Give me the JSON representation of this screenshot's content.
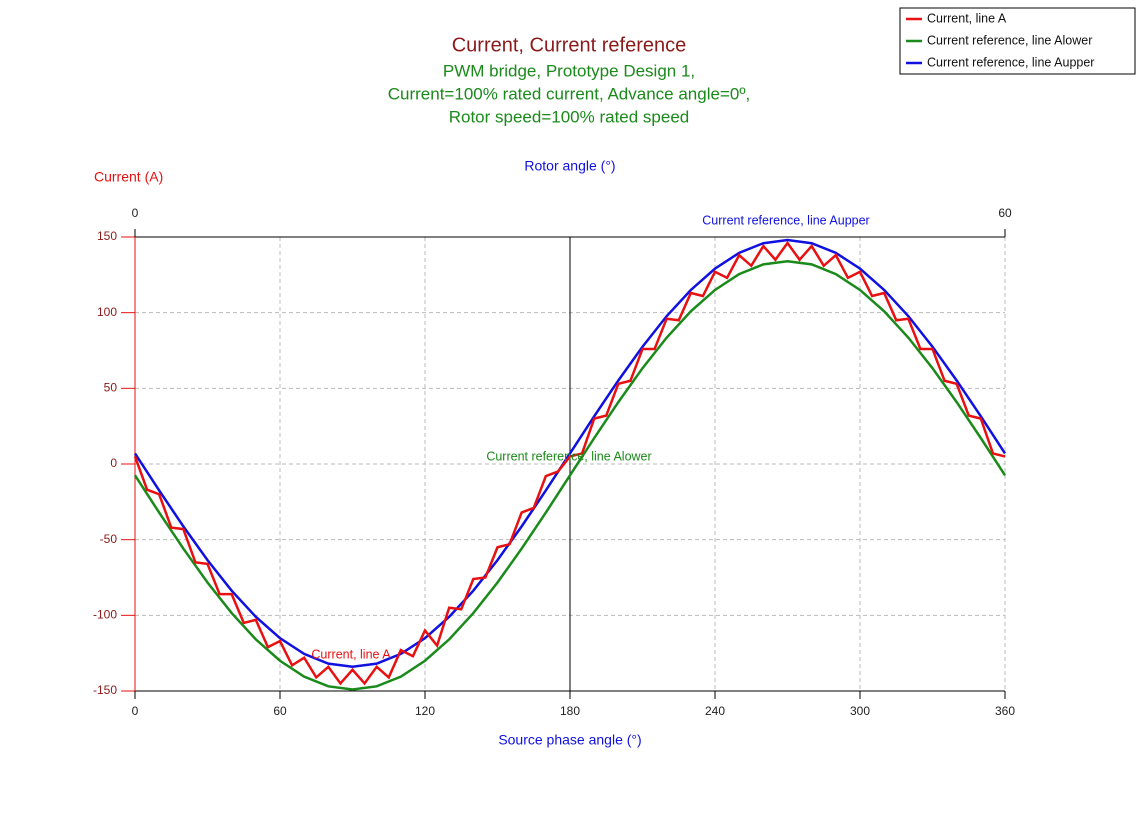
{
  "chart_data": {
    "type": "line",
    "title": "Current, Current reference",
    "subtitle": [
      "PWM bridge, Prototype Design 1,",
      "Current=100% rated current, Advance angle=0º,",
      "Rotor speed=100% rated speed"
    ],
    "x_label": "Source phase angle (°)",
    "y_label": "Current (A)",
    "x2_label": "Rotor angle (°)",
    "xlim": [
      0,
      360
    ],
    "xticks": [
      0,
      60,
      120,
      180,
      240,
      300,
      360
    ],
    "x2lim": [
      0,
      60
    ],
    "x2ticks": [
      0,
      60
    ],
    "ylim": [
      -150,
      150
    ],
    "yticks": [
      -150,
      -100,
      -50,
      0,
      50,
      100,
      150
    ],
    "grid": true,
    "legend": "top-right",
    "annotations": [
      "Current reference, line Aupper",
      "Current reference, line Alower",
      "Current, line A"
    ],
    "series": [
      {
        "name": "Current, line A",
        "color": "#e81010",
        "x": [
          0,
          5,
          10,
          15,
          20,
          25,
          30,
          35,
          40,
          45,
          50,
          55,
          60,
          65,
          70,
          75,
          80,
          85,
          90,
          95,
          100,
          105,
          110,
          115,
          120,
          125,
          130,
          135,
          140,
          145,
          150,
          155,
          160,
          165,
          170,
          175,
          180,
          185,
          190,
          195,
          200,
          205,
          210,
          215,
          220,
          225,
          230,
          235,
          240,
          245,
          250,
          255,
          260,
          265,
          270,
          275,
          280,
          285,
          290,
          295,
          300,
          305,
          310,
          315,
          320,
          325,
          330,
          335,
          340,
          345,
          350,
          355,
          360
        ],
        "values": [
          5,
          -17,
          -20,
          -42,
          -43,
          -65,
          -66,
          -86,
          -86,
          -105,
          -103,
          -121,
          -117,
          -133,
          -128,
          -141,
          -134,
          -145,
          -136,
          -145,
          -134,
          -141,
          -123,
          -127,
          -110,
          -120,
          -95,
          -96,
          -76,
          -75,
          -55,
          -53,
          -32,
          -29,
          -8,
          -5,
          5,
          7,
          30,
          32,
          53,
          55,
          76,
          76,
          96,
          95,
          113,
          111,
          127,
          123,
          138,
          131,
          144,
          135,
          146,
          135,
          144,
          131,
          138,
          123,
          127,
          111,
          113,
          95,
          96,
          76,
          76,
          55,
          53,
          32,
          30,
          7,
          5
        ]
      },
      {
        "name": "Current reference, line Alower",
        "color": "#1a8a1a",
        "x": [
          0,
          10,
          20,
          30,
          40,
          50,
          60,
          70,
          80,
          90,
          100,
          110,
          120,
          130,
          140,
          150,
          160,
          170,
          180,
          190,
          200,
          210,
          220,
          230,
          240,
          250,
          260,
          270,
          280,
          290,
          300,
          310,
          320,
          330,
          340,
          350,
          360
        ],
        "values": [
          -7.5,
          -32.1,
          -55.9,
          -78.3,
          -98.5,
          -115.9,
          -130,
          -140.5,
          -146.9,
          -149,
          -146.9,
          -140.5,
          -130,
          -115.9,
          -98.5,
          -78.3,
          -55.9,
          -32.1,
          -7.5,
          17.1,
          40.9,
          63.3,
          83.5,
          100.9,
          115,
          125.5,
          131.9,
          134,
          131.9,
          125.5,
          115,
          100.9,
          83.5,
          63.3,
          40.9,
          17.1,
          -7.5
        ]
      },
      {
        "name": "Current reference, line Aupper",
        "color": "#1010e0",
        "x": [
          0,
          10,
          20,
          30,
          40,
          50,
          60,
          70,
          80,
          90,
          100,
          110,
          120,
          130,
          140,
          150,
          160,
          170,
          180,
          190,
          200,
          210,
          220,
          230,
          240,
          250,
          260,
          270,
          280,
          290,
          300,
          310,
          320,
          330,
          340,
          350,
          360
        ],
        "values": [
          7,
          -17.5,
          -41.2,
          -63.5,
          -83.7,
          -101,
          -115.1,
          -125.5,
          -131.9,
          -134,
          -131.9,
          -125.5,
          -115.1,
          -101,
          -83.7,
          -63.5,
          -41.2,
          -17.5,
          7,
          31.5,
          55.2,
          77.5,
          97.7,
          115,
          129.1,
          139.5,
          145.9,
          148,
          145.9,
          139.5,
          129.1,
          115,
          97.7,
          77.5,
          55.2,
          31.5,
          7
        ]
      }
    ]
  }
}
